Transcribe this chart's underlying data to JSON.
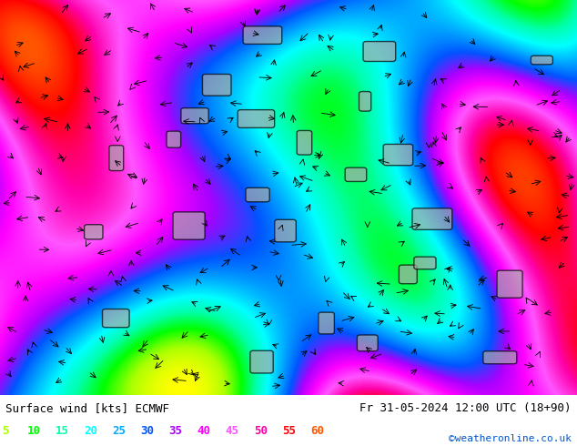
{
  "title_left": "Surface wind [kts] ECMWF",
  "title_right": "Fr 31-05-2024 12:00 UTC (18+90)",
  "credit": "©weatheronline.co.uk",
  "legend_values": [
    5,
    10,
    15,
    20,
    25,
    30,
    35,
    40,
    45,
    50,
    55,
    60
  ],
  "legend_colors": [
    "#aaff00",
    "#00ff00",
    "#00ffaa",
    "#00ffff",
    "#00aaff",
    "#0055ff",
    "#aa00ff",
    "#ff00ff",
    "#ff55ff",
    "#ff00aa",
    "#ff0000",
    "#ff5500"
  ],
  "background_color": "#ffffff",
  "map_placeholder_color": "#7ec850",
  "fig_width": 6.34,
  "fig_height": 4.9,
  "dpi": 100,
  "bottom_bar_height": 0.1,
  "text_color": "#000000",
  "credit_color": "#0055cc",
  "font_size_title": 9,
  "font_size_legend": 9,
  "font_size_credit": 8
}
